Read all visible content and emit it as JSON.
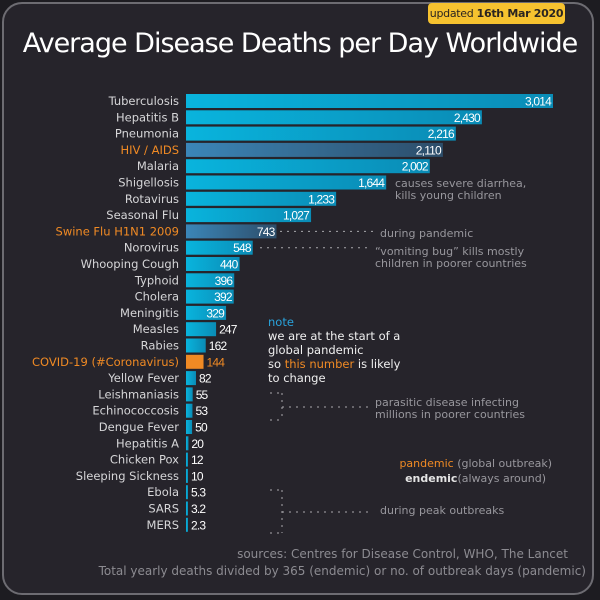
{
  "badge": {
    "prefix": "updated",
    "date": "16th Mar 2020"
  },
  "title": "Average Disease Deaths per Day Worldwide",
  "colors": {
    "bar": "#0aa6d1",
    "bar_dark": "#0a8fb8",
    "highlight_bar": "#3a80b0",
    "covid": "#f08a24",
    "pandemic_label": "#f08a24",
    "label": "#d8d8d8"
  },
  "chart_data": {
    "type": "bar",
    "orientation": "horizontal",
    "title": "Average Disease Deaths per Day Worldwide",
    "xlabel": "",
    "ylabel": "",
    "xlim": [
      0,
      3014
    ],
    "grid": false,
    "categories": [
      "Tuberculosis",
      "Hepatitis B",
      "Pneumonia",
      "HIV / AIDS",
      "Malaria",
      "Shigellosis",
      "Rotavirus",
      "Seasonal Flu",
      "Swine Flu H1N1 2009",
      "Norovirus",
      "Whooping Cough",
      "Typhoid",
      "Cholera",
      "Meningitis",
      "Measles",
      "Rabies",
      "COVID-19 (#Coronavirus)",
      "Yellow Fever",
      "Leishmaniasis",
      "Echinococcosis",
      "Dengue Fever",
      "Hepatitis A",
      "Chicken Pox",
      "Sleeping Sickness",
      "Ebola",
      "SARS",
      "MERS"
    ],
    "values": [
      3014,
      2430,
      2216,
      2110,
      2002,
      1644,
      1233,
      1027,
      743,
      548,
      440,
      396,
      392,
      329,
      247,
      162,
      144,
      82,
      55,
      53,
      50,
      20,
      12,
      10,
      5.3,
      3.2,
      2.3
    ],
    "value_labels": [
      "3,014",
      "2,430",
      "2,216",
      "2,110",
      "2,002",
      "1,644",
      "1,233",
      "1,027",
      "743",
      "548",
      "440",
      "396",
      "392",
      "329",
      "247",
      "162",
      "144",
      "82",
      "55",
      "53",
      "50",
      "20",
      "12",
      "10",
      "5.3",
      "3.2",
      "2.3"
    ],
    "type_flags": [
      "endemic",
      "endemic",
      "endemic",
      "pandemic",
      "endemic",
      "endemic",
      "endemic",
      "endemic",
      "pandemic",
      "endemic",
      "endemic",
      "endemic",
      "endemic",
      "endemic",
      "endemic",
      "endemic",
      "covid",
      "endemic",
      "endemic",
      "endemic",
      "endemic",
      "endemic",
      "endemic",
      "endemic",
      "endemic",
      "endemic",
      "endemic"
    ]
  },
  "annotations": {
    "shigellosis": [
      "causes severe diarrhea,",
      "kills young children"
    ],
    "swine": "during pandemic",
    "norovirus": [
      "“vomiting bug” kills mostly",
      "children in poorer countries"
    ],
    "parasitic": [
      "parasitic disease infecting",
      "millions in poorer countries"
    ],
    "peak": "during peak outbreaks"
  },
  "note": {
    "heading": "note",
    "line1": "we are at the start of a",
    "line2": "global pandemic",
    "line3_pre": "so ",
    "line3_hl": "this number",
    "line3_post": " is likely",
    "line4": "to change"
  },
  "legend": {
    "pandemic_key": "pandemic",
    "pandemic_desc": "(global outbreak)",
    "endemic_key": "endemic",
    "endemic_desc": "(always around)"
  },
  "footer": {
    "sources": "sources: Centres for Disease Control, WHO, The Lancet",
    "method": "Total yearly deaths divided by 365 (endemic) or no. of outbreak days (pandemic)"
  }
}
